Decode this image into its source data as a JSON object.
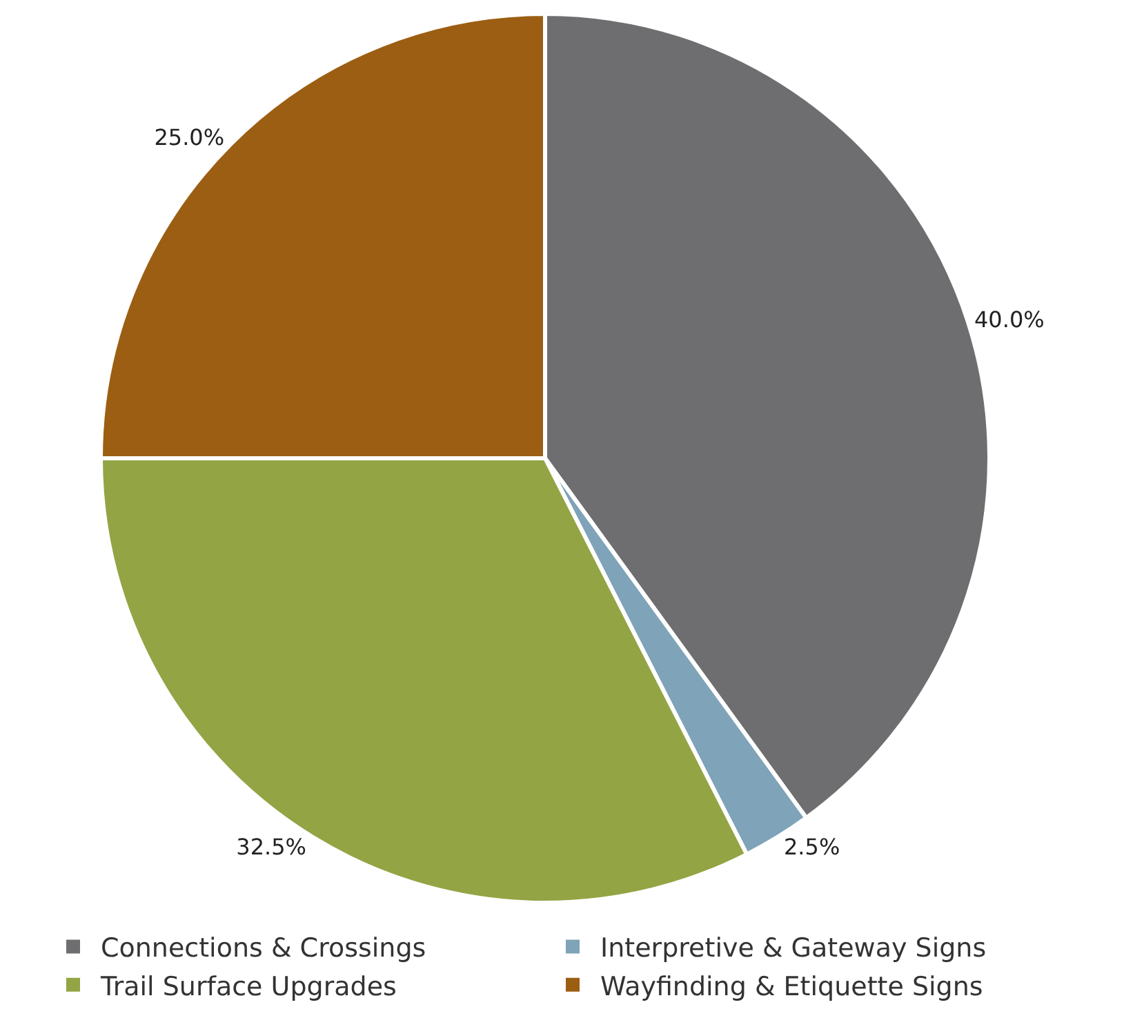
{
  "chart_data": {
    "type": "pie",
    "categories": [
      "Connections & Crossings",
      "Interpretive & Gateway Signs",
      "Trail Surface Upgrades",
      "Wayfinding & Etiquette Signs"
    ],
    "values": [
      40,
      2.5,
      32.5,
      25
    ],
    "value_labels": [
      "40.0%",
      "2.5%",
      "32.5%",
      "25.0%"
    ],
    "colors": [
      "#6e6e70",
      "#7fa3b8",
      "#93a444",
      "#9c5e12"
    ],
    "legend": "bottom"
  }
}
